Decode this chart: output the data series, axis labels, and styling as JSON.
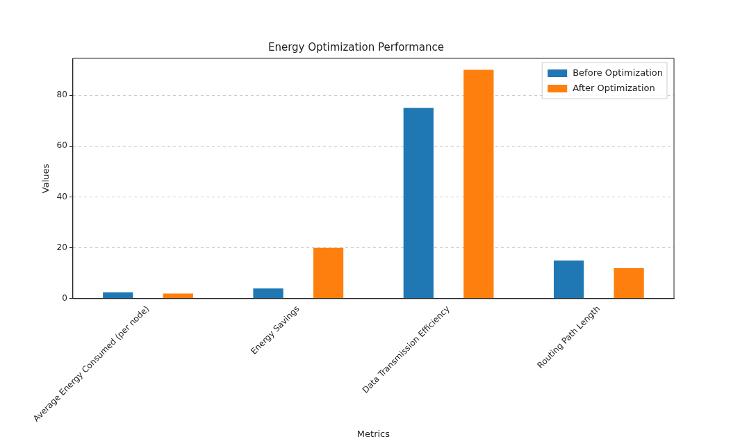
{
  "chart_data": {
    "type": "bar",
    "title": "Energy Optimization Performance",
    "xlabel": "Metrics",
    "ylabel": "Values",
    "categories": [
      "Average Energy Consumed (per node)",
      "Energy Savings",
      "Data Transmission Efficiency",
      "Routing Path Length"
    ],
    "series": [
      {
        "name": "Before Optimization",
        "color": "#1f77b4",
        "values": [
          2.5,
          4,
          75,
          15
        ]
      },
      {
        "name": "After Optimization",
        "color": "#ff7f0e",
        "values": [
          2,
          20,
          90,
          12
        ]
      }
    ],
    "ylim": [
      0,
      94.5
    ],
    "yticks": [
      0,
      20,
      40,
      60,
      80
    ],
    "grid": "y",
    "legend": "top right"
  }
}
